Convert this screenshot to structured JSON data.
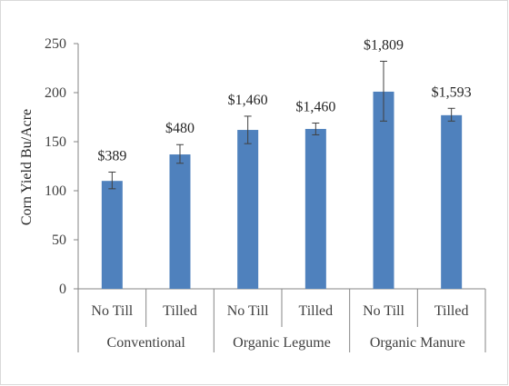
{
  "chart_data": {
    "type": "bar",
    "title": "",
    "xlabel": "",
    "ylabel": "Corn Yield Bu/Acre",
    "ylim": [
      0,
      250
    ],
    "yticks": [
      0,
      50,
      100,
      150,
      200,
      250
    ],
    "grid": false,
    "legend": "none",
    "bar_color": "#4f81bd",
    "groups": [
      "Conventional",
      "Organic Legume",
      "Organic Manure"
    ],
    "categories": [
      "No Till",
      "Tilled",
      "No Till",
      "Tilled",
      "No Till",
      "Tilled"
    ],
    "group_index": [
      0,
      0,
      1,
      1,
      2,
      2
    ],
    "values": [
      110,
      137,
      162,
      163,
      201,
      177
    ],
    "error_low": [
      102,
      128,
      148,
      157,
      171,
      171
    ],
    "error_high": [
      119,
      147,
      176,
      169,
      232,
      184
    ],
    "data_labels": [
      "$389",
      "$480",
      "$1,460",
      "$1,460",
      "$1,809",
      "$1,593"
    ]
  }
}
